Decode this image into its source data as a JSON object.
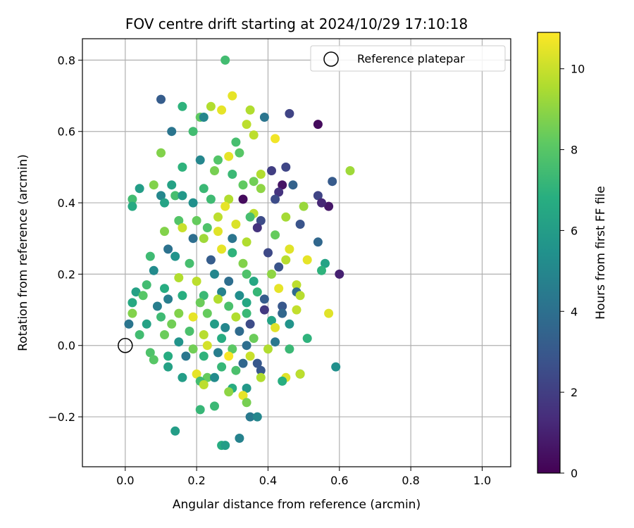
{
  "chart_data": {
    "type": "scatter",
    "title": "FOV centre drift starting at 2024/10/29 17:10:18",
    "xlabel": "Angular distance from reference (arcmin)",
    "ylabel": "Rotation from reference (arcmin)",
    "xlim": [
      -0.12,
      1.08
    ],
    "ylim": [
      -0.34,
      0.86
    ],
    "xticks": [
      0.0,
      0.2,
      0.4,
      0.6,
      0.8,
      1.0
    ],
    "xtick_labels": [
      "0.0",
      "0.2",
      "0.4",
      "0.6",
      "0.8",
      "1.0"
    ],
    "yticks": [
      -0.2,
      0.0,
      0.2,
      0.4,
      0.6,
      0.8
    ],
    "ytick_labels": [
      "−0.2",
      "0.0",
      "0.2",
      "0.4",
      "0.6",
      "0.8"
    ],
    "grid": true,
    "legend": {
      "label": "Reference platepar",
      "placement": "top-right",
      "marker": "open-circle"
    },
    "reference_point": {
      "x": 0.0,
      "y": 0.0
    },
    "colorbar": {
      "label": "Hours from first FF file",
      "colormap": "viridis",
      "range": [
        0,
        10.9
      ],
      "ticks": [
        0,
        2,
        4,
        6,
        8,
        10
      ],
      "tick_labels": [
        "0",
        "2",
        "4",
        "6",
        "8",
        "10"
      ]
    },
    "series": [
      {
        "points": [
          [
            0.28,
            0.8,
            7.5
          ],
          [
            0.3,
            0.7,
            10.5
          ],
          [
            0.1,
            0.69,
            3.2
          ],
          [
            0.24,
            0.67,
            9.6
          ],
          [
            0.16,
            0.67,
            7.0
          ],
          [
            0.27,
            0.66,
            10.5
          ],
          [
            0.35,
            0.66,
            9.6
          ],
          [
            0.39,
            0.64,
            4.2
          ],
          [
            0.46,
            0.65,
            2.2
          ],
          [
            0.21,
            0.64,
            8.2
          ],
          [
            0.22,
            0.64,
            5.0
          ],
          [
            0.54,
            0.62,
            0.3
          ],
          [
            0.13,
            0.6,
            4.2
          ],
          [
            0.19,
            0.6,
            7.5
          ],
          [
            0.34,
            0.62,
            9.8
          ],
          [
            0.36,
            0.59,
            9.8
          ],
          [
            0.42,
            0.58,
            10.7
          ],
          [
            0.31,
            0.57,
            7.6
          ],
          [
            0.1,
            0.54,
            8.8
          ],
          [
            0.32,
            0.54,
            8.0
          ],
          [
            0.29,
            0.53,
            10.5
          ],
          [
            0.26,
            0.52,
            7.9
          ],
          [
            0.21,
            0.52,
            5.0
          ],
          [
            0.45,
            0.5,
            2.3
          ],
          [
            0.63,
            0.49,
            9.3
          ],
          [
            0.41,
            0.49,
            2.0
          ],
          [
            0.25,
            0.49,
            8.6
          ],
          [
            0.16,
            0.5,
            7.0
          ],
          [
            0.3,
            0.48,
            7.3
          ],
          [
            0.38,
            0.48,
            9.6
          ],
          [
            0.36,
            0.46,
            8.5
          ],
          [
            0.58,
            0.46,
            3.1
          ],
          [
            0.47,
            0.45,
            3.4
          ],
          [
            0.33,
            0.45,
            8.2
          ],
          [
            0.13,
            0.45,
            6.2
          ],
          [
            0.08,
            0.45,
            8.8
          ],
          [
            0.44,
            0.45,
            0.6
          ],
          [
            0.43,
            0.43,
            1.6
          ],
          [
            0.38,
            0.44,
            9.0
          ],
          [
            0.22,
            0.44,
            7.3
          ],
          [
            0.04,
            0.44,
            6.0
          ],
          [
            0.14,
            0.42,
            7.6
          ],
          [
            0.1,
            0.42,
            5.0
          ],
          [
            0.16,
            0.42,
            5.8
          ],
          [
            0.54,
            0.42,
            2.2
          ],
          [
            0.02,
            0.41,
            7.5
          ],
          [
            0.33,
            0.41,
            0.3
          ],
          [
            0.42,
            0.41,
            2.5
          ],
          [
            0.29,
            0.41,
            9.6
          ],
          [
            0.24,
            0.41,
            7.4
          ],
          [
            0.11,
            0.4,
            6.3
          ],
          [
            0.19,
            0.4,
            5.4
          ],
          [
            0.57,
            0.39,
            0.7
          ],
          [
            0.55,
            0.4,
            1.2
          ],
          [
            0.02,
            0.39,
            6.6
          ],
          [
            0.5,
            0.39,
            9.2
          ],
          [
            0.28,
            0.39,
            10.5
          ],
          [
            0.36,
            0.37,
            9.8
          ],
          [
            0.35,
            0.36,
            7.6
          ],
          [
            0.26,
            0.36,
            9.8
          ],
          [
            0.45,
            0.36,
            9.4
          ],
          [
            0.38,
            0.35,
            2.5
          ],
          [
            0.2,
            0.35,
            8.3
          ],
          [
            0.15,
            0.35,
            7.9
          ],
          [
            0.49,
            0.34,
            2.8
          ],
          [
            0.31,
            0.34,
            10.3
          ],
          [
            0.23,
            0.33,
            7.8
          ],
          [
            0.37,
            0.33,
            1.6
          ],
          [
            0.16,
            0.33,
            10.0
          ],
          [
            0.11,
            0.32,
            8.8
          ],
          [
            0.26,
            0.32,
            10.4
          ],
          [
            0.3,
            0.3,
            4.2
          ],
          [
            0.42,
            0.31,
            8.3
          ],
          [
            0.19,
            0.3,
            3.9
          ],
          [
            0.22,
            0.3,
            9.3
          ],
          [
            0.54,
            0.29,
            3.6
          ],
          [
            0.34,
            0.29,
            9.6
          ],
          [
            0.27,
            0.27,
            10.5
          ],
          [
            0.12,
            0.27,
            4.1
          ],
          [
            0.46,
            0.27,
            10.4
          ],
          [
            0.3,
            0.26,
            7.0
          ],
          [
            0.4,
            0.26,
            2.4
          ],
          [
            0.14,
            0.25,
            5.6
          ],
          [
            0.07,
            0.25,
            7.4
          ],
          [
            0.45,
            0.24,
            9.7
          ],
          [
            0.51,
            0.24,
            10.5
          ],
          [
            0.24,
            0.24,
            3.2
          ],
          [
            0.33,
            0.23,
            8.8
          ],
          [
            0.18,
            0.23,
            7.6
          ],
          [
            0.56,
            0.23,
            6.3
          ],
          [
            0.43,
            0.22,
            2.8
          ],
          [
            0.55,
            0.21,
            7.0
          ],
          [
            0.08,
            0.21,
            5.2
          ],
          [
            0.6,
            0.2,
            1.0
          ],
          [
            0.34,
            0.2,
            7.8
          ],
          [
            0.41,
            0.2,
            9.0
          ],
          [
            0.25,
            0.2,
            5.0
          ],
          [
            0.15,
            0.19,
            9.6
          ],
          [
            0.36,
            0.18,
            6.5
          ],
          [
            0.29,
            0.18,
            3.9
          ],
          [
            0.48,
            0.17,
            9.8
          ],
          [
            0.2,
            0.18,
            9.8
          ],
          [
            0.06,
            0.17,
            7.5
          ],
          [
            0.11,
            0.16,
            6.7
          ],
          [
            0.43,
            0.16,
            10.5
          ],
          [
            0.37,
            0.15,
            7.2
          ],
          [
            0.27,
            0.15,
            4.8
          ],
          [
            0.03,
            0.15,
            6.2
          ],
          [
            0.48,
            0.15,
            3.8
          ],
          [
            0.22,
            0.14,
            7.3
          ],
          [
            0.16,
            0.14,
            6.8
          ],
          [
            0.49,
            0.14,
            9.7
          ],
          [
            0.32,
            0.14,
            5.3
          ],
          [
            0.05,
            0.14,
            8.0
          ],
          [
            0.39,
            0.13,
            3.2
          ],
          [
            0.12,
            0.13,
            4.6
          ],
          [
            0.26,
            0.13,
            9.6
          ],
          [
            0.21,
            0.12,
            8.4
          ],
          [
            0.34,
            0.12,
            6.5
          ],
          [
            0.02,
            0.12,
            6.6
          ],
          [
            0.44,
            0.11,
            3.0
          ],
          [
            0.09,
            0.11,
            4.6
          ],
          [
            0.29,
            0.11,
            7.7
          ],
          [
            0.39,
            0.1,
            1.8
          ],
          [
            0.48,
            0.1,
            9.9
          ],
          [
            0.15,
            0.09,
            8.8
          ],
          [
            0.23,
            0.09,
            8.3
          ],
          [
            0.34,
            0.09,
            7.3
          ],
          [
            0.02,
            0.09,
            8.8
          ],
          [
            0.57,
            0.09,
            10.4
          ],
          [
            0.44,
            0.09,
            3.6
          ],
          [
            0.31,
            0.08,
            9.6
          ],
          [
            0.1,
            0.08,
            7.4
          ],
          [
            0.19,
            0.08,
            10.5
          ],
          [
            0.41,
            0.07,
            6.3
          ],
          [
            0.06,
            0.06,
            6.2
          ],
          [
            0.25,
            0.06,
            6.0
          ],
          [
            0.35,
            0.06,
            2.5
          ],
          [
            0.13,
            0.06,
            8.5
          ],
          [
            0.46,
            0.06,
            5.6
          ],
          [
            0.01,
            0.06,
            4.2
          ],
          [
            0.28,
            0.05,
            5.0
          ],
          [
            0.42,
            0.05,
            10.4
          ],
          [
            0.18,
            0.04,
            7.7
          ],
          [
            0.32,
            0.04,
            3.8
          ],
          [
            0.11,
            0.03,
            8.4
          ],
          [
            0.04,
            0.03,
            7.5
          ],
          [
            0.51,
            0.02,
            7.0
          ],
          [
            0.22,
            0.03,
            9.7
          ],
          [
            0.36,
            0.02,
            8.4
          ],
          [
            0.27,
            0.02,
            6.7
          ],
          [
            0.42,
            0.01,
            4.3
          ],
          [
            0.15,
            0.01,
            5.6
          ],
          [
            0.34,
            0.0,
            3.9
          ],
          [
            0.23,
            0.0,
            10.2
          ],
          [
            0.46,
            -0.01,
            7.3
          ],
          [
            0.3,
            -0.01,
            8.1
          ],
          [
            0.19,
            -0.01,
            8.5
          ],
          [
            0.07,
            -0.02,
            7.8
          ],
          [
            0.4,
            -0.01,
            9.6
          ],
          [
            0.26,
            -0.02,
            4.6
          ],
          [
            0.12,
            -0.03,
            6.7
          ],
          [
            0.35,
            -0.03,
            10.0
          ],
          [
            0.22,
            -0.03,
            7.0
          ],
          [
            0.29,
            -0.03,
            10.8
          ],
          [
            0.17,
            -0.03,
            4.3
          ],
          [
            0.08,
            -0.04,
            8.0
          ],
          [
            0.33,
            -0.05,
            3.6
          ],
          [
            0.37,
            -0.05,
            3.0
          ],
          [
            0.27,
            -0.06,
            7.2
          ],
          [
            0.12,
            -0.06,
            6.2
          ],
          [
            0.59,
            -0.06,
            5.4
          ],
          [
            0.31,
            -0.07,
            7.7
          ],
          [
            0.38,
            -0.07,
            3.0
          ],
          [
            0.49,
            -0.08,
            5.6
          ],
          [
            0.49,
            -0.08,
            9.8
          ],
          [
            0.16,
            -0.09,
            6.0
          ],
          [
            0.2,
            -0.08,
            10.5
          ],
          [
            0.23,
            -0.09,
            8.3
          ],
          [
            0.25,
            -0.09,
            5.2
          ],
          [
            0.38,
            -0.09,
            9.6
          ],
          [
            0.45,
            -0.09,
            10.4
          ],
          [
            0.44,
            -0.1,
            6.8
          ],
          [
            0.21,
            -0.1,
            7.5
          ],
          [
            0.22,
            -0.11,
            9.8
          ],
          [
            0.34,
            -0.12,
            5.8
          ],
          [
            0.3,
            -0.12,
            6.7
          ],
          [
            0.29,
            -0.13,
            9.0
          ],
          [
            0.33,
            -0.14,
            10.5
          ],
          [
            0.21,
            -0.18,
            7.2
          ],
          [
            0.25,
            -0.17,
            7.3
          ],
          [
            0.34,
            -0.16,
            8.6
          ],
          [
            0.35,
            -0.2,
            4.4
          ],
          [
            0.37,
            -0.2,
            5.0
          ],
          [
            0.14,
            -0.24,
            6.0
          ],
          [
            0.32,
            -0.26,
            4.8
          ],
          [
            0.27,
            -0.28,
            6.7
          ],
          [
            0.28,
            -0.28,
            6.0
          ]
        ]
      }
    ]
  }
}
